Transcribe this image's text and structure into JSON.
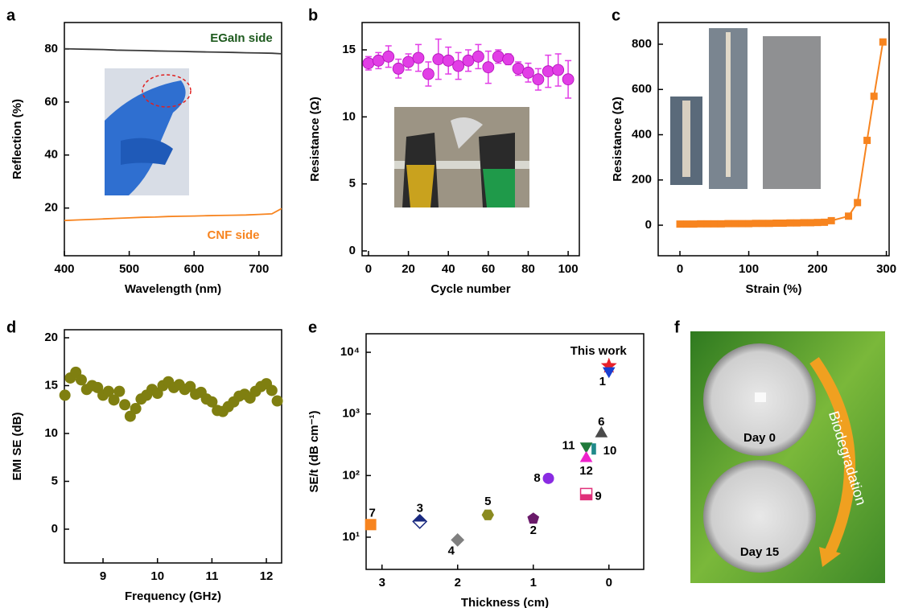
{
  "chart_data": [
    {
      "type": "line",
      "panel": "a",
      "xlabel": "Wavelength (nm)",
      "ylabel": "Reflection (%)",
      "xlim": [
        400,
        735
      ],
      "ylim": [
        2,
        90
      ],
      "xticks": [
        400,
        500,
        600,
        700
      ],
      "yticks": [
        20,
        40,
        60,
        80
      ],
      "x": [
        400,
        420,
        440,
        460,
        480,
        500,
        520,
        540,
        560,
        580,
        600,
        620,
        640,
        660,
        680,
        700,
        720,
        735
      ],
      "series": [
        {
          "name": "EGaIn side",
          "color": "#3a3a3a",
          "label_color": "#1e5a1e",
          "values": [
            80.1,
            80,
            79.9,
            79.8,
            79.6,
            79.5,
            79.4,
            79.3,
            79.2,
            79.1,
            79,
            78.9,
            78.8,
            78.7,
            78.6,
            78.5,
            78.4,
            78.2
          ]
        },
        {
          "name": "CNF side",
          "color": "#f7841f",
          "label_color": "#f7841f",
          "values": [
            15.3,
            15.5,
            15.7,
            15.9,
            16.1,
            16.3,
            16.5,
            16.6,
            16.8,
            16.9,
            17,
            17.1,
            17.2,
            17.3,
            17.4,
            17.6,
            17.8,
            19.8
          ]
        }
      ]
    },
    {
      "type": "scatter",
      "panel": "b",
      "xlabel": "Cycle number",
      "ylabel": "Resistance (Ω)",
      "xlim": [
        -3.2,
        105.6
      ],
      "ylim": [
        -0.36,
        17.04
      ],
      "xticks": [
        0,
        20,
        40,
        60,
        80,
        100
      ],
      "yticks": [
        0,
        5,
        10,
        15
      ],
      "x": [
        0,
        5,
        10,
        15,
        20,
        25,
        30,
        35,
        40,
        45,
        50,
        55,
        60,
        65,
        70,
        75,
        80,
        85,
        90,
        95,
        100
      ],
      "series": [
        {
          "color": "#e23ee6",
          "marker": "circle",
          "values": [
            14.0,
            14.2,
            14.5,
            13.6,
            14.1,
            14.4,
            13.2,
            14.3,
            14.2,
            13.8,
            14.2,
            14.5,
            13.7,
            14.5,
            14.3,
            13.6,
            13.3,
            12.8,
            13.4,
            13.5,
            12.8
          ],
          "errors": [
            0.5,
            0.6,
            0.8,
            0.7,
            0.6,
            1.0,
            0.9,
            1.5,
            1.0,
            1.0,
            0.8,
            0.9,
            1.2,
            0.5,
            0.4,
            0.5,
            0.7,
            0.8,
            1.2,
            1.2,
            1.4
          ]
        }
      ]
    },
    {
      "type": "line",
      "panel": "c",
      "xlabel": "Strain (%)",
      "ylabel": "Resistance (Ω)",
      "xlim": [
        -31.6,
        304
      ],
      "ylim": [
        -135,
        896
      ],
      "xticks": [
        0,
        100,
        200,
        300
      ],
      "yticks": [
        0,
        200,
        400,
        600,
        800
      ],
      "x": [
        0,
        10,
        20,
        30,
        40,
        50,
        60,
        70,
        80,
        90,
        100,
        110,
        120,
        130,
        140,
        150,
        160,
        170,
        180,
        190,
        200,
        210,
        220,
        245,
        258,
        272,
        282,
        295
      ],
      "series": [
        {
          "color": "#f7841f",
          "marker": "square",
          "values": [
            5,
            5,
            5,
            6,
            6,
            6,
            6,
            7,
            7,
            7,
            7,
            8,
            8,
            8,
            9,
            9,
            10,
            10,
            11,
            11,
            12,
            13,
            20,
            40,
            100,
            375,
            570,
            810
          ]
        }
      ]
    },
    {
      "type": "scatter",
      "panel": "d",
      "xlabel": "Frequency (GHz)",
      "ylabel": "EMI SE (dB)",
      "xlim": [
        8.29,
        12.28
      ],
      "ylim": [
        -3.53,
        20.84
      ],
      "xticks": [
        9,
        10,
        11,
        12
      ],
      "yticks": [
        0,
        5,
        10,
        15,
        20
      ],
      "x": [
        8.3,
        8.4,
        8.5,
        8.6,
        8.7,
        8.8,
        8.9,
        9.0,
        9.1,
        9.2,
        9.3,
        9.4,
        9.5,
        9.6,
        9.7,
        9.8,
        9.9,
        10.0,
        10.1,
        10.2,
        10.3,
        10.4,
        10.5,
        10.6,
        10.7,
        10.8,
        10.9,
        11.0,
        11.1,
        11.2,
        11.3,
        11.4,
        11.5,
        11.6,
        11.7,
        11.8,
        11.9,
        12.0,
        12.1,
        12.2
      ],
      "series": [
        {
          "color": "#7f7f10",
          "marker": "circle",
          "values": [
            14.0,
            15.8,
            16.4,
            15.6,
            14.6,
            15.0,
            14.8,
            14.0,
            14.4,
            13.5,
            14.4,
            13.0,
            11.8,
            12.6,
            13.6,
            14.0,
            14.6,
            14.2,
            15.0,
            15.4,
            14.8,
            15.1,
            14.6,
            14.9,
            14.1,
            14.3,
            13.6,
            13.3,
            12.4,
            12.3,
            12.8,
            13.3,
            13.9,
            14.1,
            13.7,
            14.4,
            14.9,
            15.2,
            14.5,
            13.4
          ]
        }
      ]
    },
    {
      "type": "scatter",
      "panel": "e",
      "xlabel": "Thickness (cm)",
      "ylabel": "SE/t (dB cm⁻¹)",
      "xlim": [
        3.21,
        -0.46
      ],
      "ylim": [
        3,
        20000
      ],
      "ylog": true,
      "xticks": [
        3,
        2,
        1,
        0
      ],
      "yticks": [
        {
          "value": 10,
          "label": "10¹"
        },
        {
          "value": 100,
          "label": "10²"
        },
        {
          "value": 1000,
          "label": "10³"
        },
        {
          "value": 10000,
          "label": "10⁴"
        }
      ],
      "series": [
        {
          "name": "This work",
          "color": "#e8202a",
          "marker": "star",
          "x": [
            0
          ],
          "values": [
            6000
          ]
        },
        {
          "name": "1",
          "color": "#1a3fd0",
          "marker": "triangle-down",
          "x": [
            0
          ],
          "values": [
            5000
          ]
        },
        {
          "name": "6",
          "color": "#4a4a4a",
          "marker": "triangle",
          "x": [
            0.1
          ],
          "values": [
            480
          ]
        },
        {
          "name": "11",
          "color": "#1f7a3a",
          "marker": "triangle-down",
          "x": [
            0.3
          ],
          "values": [
            300
          ]
        },
        {
          "name": "10",
          "color": "#1f8a8a",
          "marker": "bar",
          "x": [
            0.2
          ],
          "values": [
            270
          ]
        },
        {
          "name": "12",
          "color": "#ee22cc",
          "marker": "triangle",
          "x": [
            0.3
          ],
          "values": [
            190
          ]
        },
        {
          "name": "8",
          "color": "#8a2be2",
          "marker": "circle",
          "x": [
            0.8
          ],
          "values": [
            90
          ]
        },
        {
          "name": "9",
          "color": "#e0307a",
          "marker": "half-square",
          "x": [
            0.3
          ],
          "values": [
            50
          ]
        },
        {
          "name": "5",
          "color": "#8a8a20",
          "marker": "hexagon",
          "x": [
            1.6
          ],
          "values": [
            23
          ]
        },
        {
          "name": "2",
          "color": "#6a1a6a",
          "marker": "pentagon",
          "x": [
            1.0
          ],
          "values": [
            20
          ]
        },
        {
          "name": "4",
          "color": "#808080",
          "marker": "diamond",
          "x": [
            2.0
          ],
          "values": [
            9
          ]
        },
        {
          "name": "3",
          "color": "#1a2a80",
          "marker": "half-diamond",
          "x": [
            2.5
          ],
          "values": [
            18
          ]
        },
        {
          "name": "7",
          "color": "#f7841f",
          "marker": "square",
          "x": [
            3.15
          ],
          "values": [
            16
          ]
        }
      ]
    },
    {
      "type": "photo",
      "panel": "f",
      "labels": [
        "Day 0",
        "Day 15",
        "Biodegradation"
      ]
    }
  ]
}
